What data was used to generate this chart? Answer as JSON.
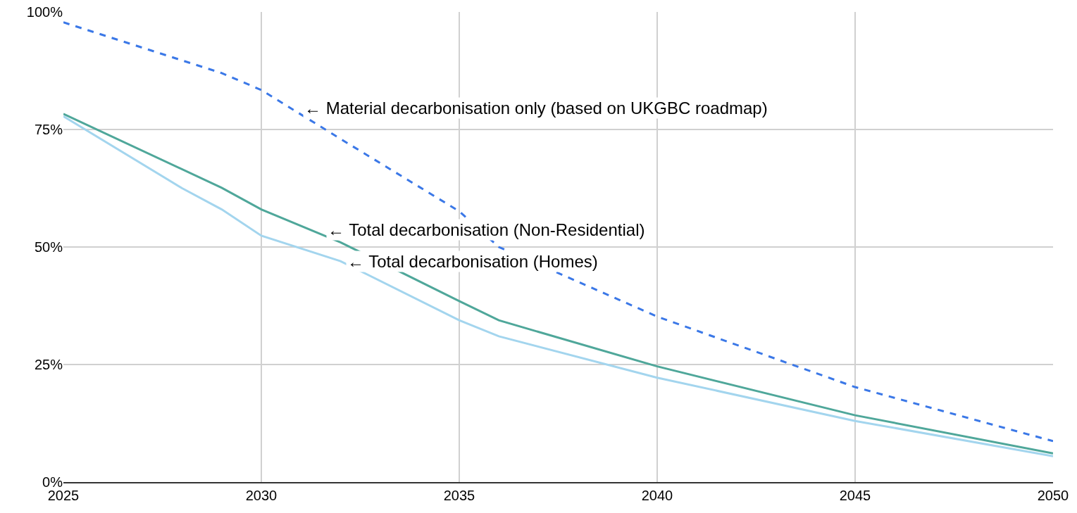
{
  "chart_data": {
    "type": "line",
    "x": [
      2025,
      2029,
      2030,
      2032,
      2035,
      2036,
      2040,
      2045,
      2050
    ],
    "series": [
      {
        "color": "#3b78e7",
        "line_style": "dashed",
        "values": [
          97.8,
          87,
          83.4,
          73,
          57.6,
          50,
          35.2,
          20.2,
          8.7
        ]
      },
      {
        "color": "#4fa79a",
        "line_style": "solid",
        "values": [
          78.3,
          62.6,
          58,
          51,
          38.5,
          34.4,
          24.6,
          14.2,
          6.1
        ]
      },
      {
        "color": "#a3d5ee",
        "line_style": "solid",
        "x": [
          2025,
          2028,
          2029,
          2030,
          2032,
          2035,
          2036,
          2040,
          2045,
          2050
        ],
        "values": [
          77.8,
          62.5,
          58,
          52.4,
          47,
          34.4,
          31,
          22.2,
          13,
          5.5
        ]
      }
    ],
    "xlim": [
      2025,
      2050
    ],
    "xticks": [
      2025,
      2030,
      2035,
      2040,
      2045,
      2050
    ],
    "ylim": [
      0,
      100
    ],
    "yticks": [
      {
        "value": 0,
        "label": "0%"
      },
      {
        "value": 25,
        "label": "25%"
      },
      {
        "value": 50,
        "label": "50%"
      },
      {
        "value": 75,
        "label": "75%"
      },
      {
        "value": 100,
        "label": "100%"
      }
    ],
    "grid": true,
    "marker": "none",
    "annotations": [
      {
        "text": "← Material decarbonisation only (based on UKGBC roadmap)",
        "x": 2030.9,
        "y": 79.6
      },
      {
        "text": "← Total decarbonisation (Non-Residential)",
        "x": 2031.5,
        "y": 53.6
      },
      {
        "text": "← Total decarbonisation (Homes)",
        "x": 2032,
        "y": 47
      }
    ]
  }
}
